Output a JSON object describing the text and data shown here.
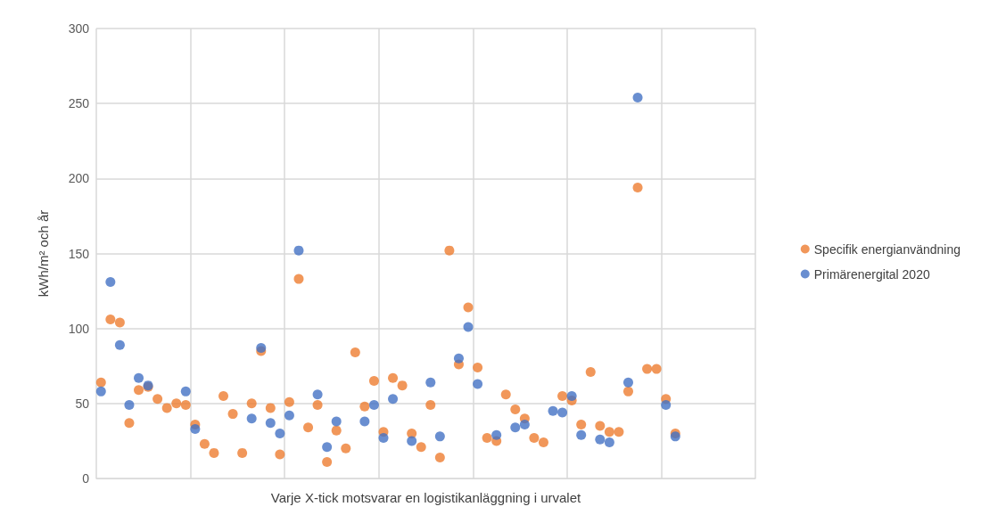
{
  "chart_data": {
    "type": "scatter",
    "xlabel": "Varje X-tick motsvarar en logistikanläggning i urvalet",
    "ylabel": "kWh/m² och år",
    "categories": [
      null,
      null,
      null,
      null,
      null,
      null,
      null,
      null,
      null,
      null,
      null,
      null,
      null,
      null,
      null,
      null,
      null,
      null,
      null,
      null,
      null,
      null,
      null,
      null,
      null,
      null,
      null,
      null,
      null,
      null,
      null,
      null,
      null,
      null,
      null,
      null,
      null,
      null,
      null,
      null,
      null,
      null,
      null,
      null,
      null,
      null,
      null,
      null,
      null,
      null,
      null,
      null,
      null,
      null,
      null,
      null,
      null,
      null,
      null,
      null,
      null,
      null,
      null,
      null,
      null,
      null,
      null,
      null,
      null,
      null
    ],
    "series": [
      {
        "name": "Specifik energianvändning",
        "color": "#ed7d31",
        "values": [
          64,
          106,
          104,
          37,
          59,
          61,
          53,
          47,
          50,
          49,
          36,
          23,
          17,
          55,
          43,
          17,
          50,
          85,
          47,
          16,
          51,
          133,
          34,
          49,
          11,
          32,
          20,
          84,
          48,
          65,
          31,
          67,
          62,
          30,
          21,
          49,
          14,
          152,
          76,
          114,
          74,
          27,
          25,
          56,
          46,
          40,
          27,
          24,
          null,
          55,
          52,
          36,
          71,
          35,
          31,
          31,
          58,
          194,
          73,
          73,
          53,
          30,
          null,
          null,
          null,
          null,
          null,
          null,
          null,
          null
        ]
      },
      {
        "name": "Primärenergital 2020",
        "color": "#4472c4",
        "values": [
          58,
          131,
          89,
          49,
          67,
          62,
          null,
          null,
          null,
          58,
          33,
          null,
          null,
          null,
          null,
          null,
          40,
          87,
          37,
          30,
          42,
          152,
          null,
          56,
          21,
          38,
          null,
          null,
          38,
          49,
          27,
          53,
          null,
          25,
          null,
          64,
          28,
          null,
          80,
          101,
          63,
          null,
          29,
          null,
          34,
          36,
          null,
          null,
          45,
          44,
          55,
          29,
          null,
          26,
          24,
          null,
          64,
          254,
          null,
          null,
          49,
          28,
          null,
          null,
          null,
          null,
          null,
          null,
          null,
          null
        ]
      }
    ],
    "ylim": [
      0,
      300
    ],
    "yticks": [
      0,
      50,
      100,
      150,
      200,
      250,
      300
    ],
    "tick_labels": "y",
    "grid": true,
    "legend": "right",
    "marker": "circle"
  }
}
